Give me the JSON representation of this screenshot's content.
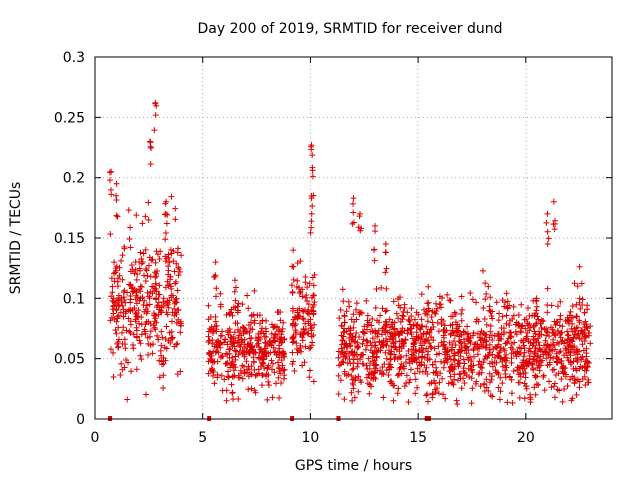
{
  "chart_data": {
    "type": "scatter",
    "title": "Day 200 of 2019, SRMTID for receiver dund",
    "xlabel": "GPS time / hours",
    "ylabel": "SRMTID / TECUs",
    "xlim": [
      0,
      24
    ],
    "ylim": [
      0,
      0.3
    ],
    "x_ticks": [
      "0",
      "5",
      "10",
      "15",
      "20"
    ],
    "x_tick_values": [
      0,
      5,
      10,
      15,
      20
    ],
    "y_ticks": [
      "0",
      "0.05",
      "0.1",
      "0.15",
      "0.2",
      "0.25",
      "0.3"
    ],
    "y_tick_values": [
      0,
      0.05,
      0.1,
      0.15,
      0.2,
      0.25,
      0.3
    ],
    "grid": true,
    "marker": "plus",
    "color": "#dd0000",
    "segments": [
      {
        "start": 0.7,
        "end": 4.0,
        "mean": 0.095,
        "spread": 0.03,
        "peaks": [
          [
            0.75,
            0.205
          ],
          [
            1.0,
            0.195
          ],
          [
            2.55,
            0.23
          ],
          [
            2.8,
            0.262
          ],
          [
            3.3,
            0.18
          ]
        ]
      },
      {
        "start": 5.25,
        "end": 8.8,
        "mean": 0.06,
        "spread": 0.017,
        "peaks": [
          [
            5.6,
            0.13
          ],
          [
            6.5,
            0.115
          ]
        ]
      },
      {
        "start": 9.15,
        "end": 10.2,
        "mean": 0.075,
        "spread": 0.02,
        "peaks": [
          [
            9.2,
            0.14
          ],
          [
            10.05,
            0.227
          ],
          [
            10.1,
            0.206
          ],
          [
            10.05,
            0.183
          ]
        ]
      },
      {
        "start": 11.3,
        "end": 23.0,
        "mean": 0.06,
        "spread": 0.02,
        "peaks": [
          [
            12.0,
            0.183
          ],
          [
            12.3,
            0.17
          ],
          [
            13.0,
            0.16
          ],
          [
            13.5,
            0.145
          ],
          [
            21.3,
            0.18
          ],
          [
            21.0,
            0.17
          ],
          [
            20.5,
            0.1
          ],
          [
            22.5,
            0.1
          ]
        ]
      }
    ],
    "zero_markers_x": [
      0.7,
      5.3,
      9.15,
      11.3,
      15.4,
      15.5
    ]
  }
}
